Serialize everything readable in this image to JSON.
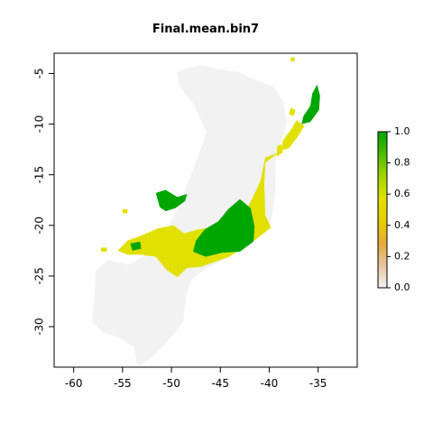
{
  "chart_data": {
    "type": "heatmap",
    "title": "Final.mean.bin7",
    "xlabel": "",
    "ylabel": "",
    "xlim": [
      -62,
      -31
    ],
    "ylim": [
      -34,
      -3
    ],
    "x_ticks": [
      -60,
      -55,
      -50,
      -45,
      -40,
      -35
    ],
    "x_tick_labels": [
      "-60",
      "-55",
      "-50",
      "-45",
      "-40",
      "-35"
    ],
    "y_ticks": [
      -5,
      -10,
      -15,
      -20,
      -25,
      -30
    ],
    "y_tick_labels": [
      "-5",
      "-10",
      "-15",
      "-20",
      "-25",
      "-30"
    ],
    "colorbar": {
      "min": 0.0,
      "max": 1.0,
      "ticks": [
        0.0,
        0.2,
        0.4,
        0.6,
        0.8,
        1.0
      ],
      "tick_labels": [
        "0.0",
        "0.2",
        "0.4",
        "0.6",
        "0.8",
        "1.0"
      ],
      "colors": [
        "#f2f2f2",
        "#e8c4a0",
        "#e6aa3a",
        "#e6d000",
        "#e2e000",
        "#a0d600",
        "#4dbb00",
        "#00a600"
      ]
    },
    "background_color": "#f2f2f2",
    "regions": [
      {
        "value": 0.0,
        "color": "#f2f2f2",
        "polygon": [
          [
            -48.5,
            -4.5
          ],
          [
            -47,
            -4.2
          ],
          [
            -45,
            -4.6
          ],
          [
            -43,
            -4.9
          ],
          [
            -41.5,
            -5.6
          ],
          [
            -39.6,
            -6.3
          ],
          [
            -38.6,
            -7.7
          ],
          [
            -38.2,
            -9.8
          ],
          [
            -38.8,
            -11.8
          ],
          [
            -39.4,
            -13.8
          ],
          [
            -39.3,
            -16.2
          ],
          [
            -39.8,
            -19.5
          ],
          [
            -41.5,
            -21.3
          ],
          [
            -44,
            -23.1
          ],
          [
            -46.5,
            -24.3
          ],
          [
            -48,
            -25.4
          ],
          [
            -48.5,
            -27
          ],
          [
            -48.8,
            -29.5
          ],
          [
            -50.4,
            -31.5
          ],
          [
            -52.3,
            -33.3
          ],
          [
            -53.5,
            -33.9
          ],
          [
            -53.8,
            -32
          ],
          [
            -55.5,
            -31
          ],
          [
            -57,
            -30.6
          ],
          [
            -58.1,
            -29.6
          ],
          [
            -57.9,
            -27.3
          ],
          [
            -57.7,
            -24.5
          ],
          [
            -56.5,
            -23.4
          ],
          [
            -54.4,
            -23.9
          ],
          [
            -51.5,
            -22.2
          ],
          [
            -50.1,
            -19.7
          ],
          [
            -49,
            -17.5
          ],
          [
            -47.4,
            -13.5
          ],
          [
            -46.4,
            -10.8
          ],
          [
            -47.8,
            -7.9
          ],
          [
            -49.2,
            -6.3
          ],
          [
            -49.4,
            -4.9
          ]
        ]
      },
      {
        "value": 0.6,
        "color": "#e2e000",
        "polygon": [
          [
            -39,
            -12.8
          ],
          [
            -40.4,
            -13.8
          ],
          [
            -40.5,
            -16
          ],
          [
            -40.4,
            -19
          ],
          [
            -39.8,
            -20.2
          ],
          [
            -41.4,
            -21.4
          ],
          [
            -44.1,
            -23.1
          ],
          [
            -47,
            -24.1
          ],
          [
            -48.4,
            -24.2
          ],
          [
            -49.4,
            -25.1
          ],
          [
            -50.5,
            -24.4
          ],
          [
            -51.6,
            -23.1
          ],
          [
            -53.1,
            -22.9
          ],
          [
            -54.5,
            -22.9
          ],
          [
            -55.5,
            -22.5
          ],
          [
            -54.5,
            -21.5
          ],
          [
            -52.8,
            -20.9
          ],
          [
            -51.4,
            -20.3
          ],
          [
            -49.8,
            -20
          ],
          [
            -48.7,
            -20.8
          ],
          [
            -47.3,
            -20.4
          ],
          [
            -45.8,
            -20.2
          ],
          [
            -44.5,
            -19.3
          ],
          [
            -42.6,
            -18.9
          ],
          [
            -41.7,
            -17.3
          ],
          [
            -40.9,
            -15.6
          ],
          [
            -40.4,
            -13.3
          ]
        ]
      },
      {
        "value": 1.0,
        "color": "#00a600",
        "polygon": [
          [
            -46.6,
            -20.4
          ],
          [
            -45.2,
            -19.6
          ],
          [
            -44.2,
            -18.4
          ],
          [
            -43,
            -17.4
          ],
          [
            -41.9,
            -18.3
          ],
          [
            -41.5,
            -20.1
          ],
          [
            -41.6,
            -21.6
          ],
          [
            -43,
            -22.6
          ],
          [
            -44.8,
            -22.7
          ],
          [
            -46.5,
            -23.1
          ],
          [
            -47.8,
            -22.6
          ],
          [
            -47.5,
            -21.5
          ]
        ]
      },
      {
        "value": 1.0,
        "color": "#00a600",
        "polygon": [
          [
            -35.1,
            -6.1
          ],
          [
            -34.8,
            -7.2
          ],
          [
            -34.9,
            -8.6
          ],
          [
            -35.8,
            -9.8
          ],
          [
            -36.7,
            -10
          ],
          [
            -36.5,
            -9.2
          ],
          [
            -35.8,
            -8.2
          ],
          [
            -35.6,
            -7
          ]
        ]
      },
      {
        "value": 1.0,
        "color": "#00a600",
        "polygon": [
          [
            -51.6,
            -16.8
          ],
          [
            -50.6,
            -16.5
          ],
          [
            -49.4,
            -17.2
          ],
          [
            -48.4,
            -16.9
          ],
          [
            -48.6,
            -17.6
          ],
          [
            -49.6,
            -18.3
          ],
          [
            -50.6,
            -18.6
          ],
          [
            -51.2,
            -18.2
          ]
        ]
      },
      {
        "value": 1.0,
        "color": "#00a600",
        "polygon": [
          [
            -54.2,
            -21.8
          ],
          [
            -53.2,
            -21.6
          ],
          [
            -53.1,
            -22.3
          ],
          [
            -54,
            -22.5
          ]
        ]
      },
      {
        "value": 0.6,
        "color": "#e2e000",
        "polygon": [
          [
            -38.6,
            -11.6
          ],
          [
            -37.8,
            -10.6
          ],
          [
            -37.2,
            -9.6
          ],
          [
            -36.4,
            -10.2
          ],
          [
            -37.2,
            -11.4
          ],
          [
            -38,
            -12.4
          ],
          [
            -38.8,
            -12.6
          ]
        ]
      },
      {
        "value": 0.6,
        "color": "#e2e000",
        "polygon": [
          [
            -39.2,
            -12.2
          ],
          [
            -38.8,
            -12
          ],
          [
            -38.6,
            -12.8
          ],
          [
            -39.2,
            -13.2
          ]
        ]
      },
      {
        "value": 0.6,
        "color": "#e2e000",
        "polygon": [
          [
            -37.8,
            -8.4
          ],
          [
            -37.3,
            -8.6
          ],
          [
            -37.5,
            -9.2
          ],
          [
            -38,
            -9
          ]
        ]
      },
      {
        "value": 0.6,
        "color": "#e2e000",
        "polygon": [
          [
            -37.8,
            -3.4
          ],
          [
            -37.4,
            -3.4
          ],
          [
            -37.4,
            -3.8
          ],
          [
            -37.8,
            -3.8
          ]
        ]
      },
      {
        "value": 0.6,
        "color": "#e2e000",
        "polygon": [
          [
            -57.2,
            -22.2
          ],
          [
            -56.6,
            -22.2
          ],
          [
            -56.6,
            -22.6
          ],
          [
            -57.2,
            -22.6
          ]
        ]
      },
      {
        "value": 0.6,
        "color": "#e2e000",
        "polygon": [
          [
            -55,
            -18.4
          ],
          [
            -54.5,
            -18.4
          ],
          [
            -54.5,
            -18.8
          ],
          [
            -55,
            -18.8
          ]
        ]
      }
    ]
  }
}
